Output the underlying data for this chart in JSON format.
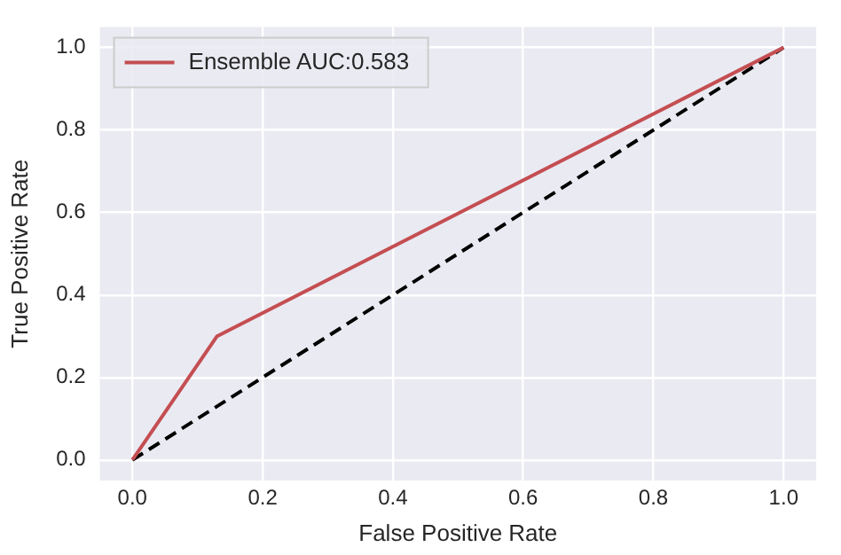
{
  "chart_data": {
    "type": "line",
    "xlabel": "False Positive Rate",
    "ylabel": "True Positive Rate",
    "xlim": [
      -0.05,
      1.05
    ],
    "ylim": [
      -0.05,
      1.05
    ],
    "xticks": [
      {
        "value": 0,
        "label": "0.0"
      },
      {
        "value": 0.2,
        "label": "0.2"
      },
      {
        "value": 0.4,
        "label": "0.4"
      },
      {
        "value": 0.6,
        "label": "0.6"
      },
      {
        "value": 0.8,
        "label": "0.8"
      },
      {
        "value": 1,
        "label": "1.0"
      }
    ],
    "yticks": [
      {
        "value": 0,
        "label": "0.0"
      },
      {
        "value": 0.2,
        "label": "0.2"
      },
      {
        "value": 0.4,
        "label": "0.4"
      },
      {
        "value": 0.6,
        "label": "0.6"
      },
      {
        "value": 0.8,
        "label": "0.8"
      },
      {
        "value": 1,
        "label": "1.0"
      }
    ],
    "grid": true,
    "legend": "top left",
    "marker": "none",
    "series": [
      {
        "name": "Ensemble AUC:0.583",
        "color": "#c44e52",
        "x": [
          0,
          0.13,
          1
        ],
        "values": [
          0,
          0.3,
          1
        ]
      },
      {
        "color": "#000000",
        "x": [
          0,
          1
        ],
        "values": [
          0,
          1
        ],
        "line_style": "dashed"
      }
    ]
  }
}
